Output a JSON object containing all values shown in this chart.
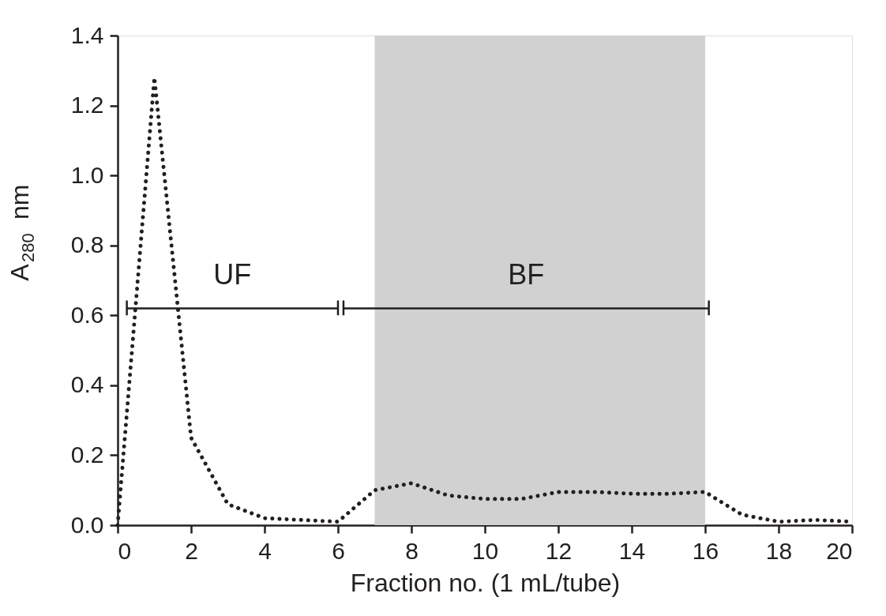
{
  "chart_data": {
    "type": "line",
    "xlabel": "Fraction no. (1 mL/tube)",
    "ylabel": "A$_{280}$ nm",
    "xlim": [
      0,
      20
    ],
    "xticks": [
      0,
      2,
      4,
      6,
      8,
      10,
      12,
      14,
      16,
      18,
      20
    ],
    "ylim": [
      0,
      1.4
    ],
    "yticks": [
      {
        "value": 0,
        "label": "0.0"
      },
      0.2,
      0.4,
      0.6,
      0.8,
      {
        "value": 1,
        "label": "1.0"
      },
      1.2,
      1.4
    ],
    "grid": false,
    "bands": [
      {
        "axis": "x",
        "from": 7,
        "to": 16,
        "color": "#d1d1d1"
      }
    ],
    "series": [
      {
        "color": "#231f20",
        "line_style": "dotted",
        "x": [
          0,
          1,
          2,
          3,
          4,
          5,
          6,
          7,
          8,
          9,
          10,
          11,
          12,
          13,
          14,
          15,
          16,
          17,
          18,
          19,
          20
        ],
        "values": [
          0.0,
          1.28,
          0.25,
          0.06,
          0.02,
          0.015,
          0.01,
          0.1,
          0.12,
          0.085,
          0.075,
          0.075,
          0.095,
          0.095,
          0.09,
          0.09,
          0.095,
          0.03,
          0.01,
          0.015,
          0.01
        ]
      },
      {
        "color": "#231f20",
        "line_style": "solid",
        "x": [
          0.25,
          0.25,
          0.25,
          6.0,
          6.0,
          6.0
        ],
        "values": [
          0.6,
          0.64,
          0.62,
          0.62,
          0.64,
          0.6
        ]
      },
      {
        "color": "#231f20",
        "line_style": "solid",
        "x": [
          6.15,
          6.15,
          6.15,
          16.1,
          16.1,
          16.1
        ],
        "values": [
          0.6,
          0.64,
          0.62,
          0.62,
          0.64,
          0.6
        ]
      }
    ],
    "annotations": [
      "UF",
      "BF"
    ]
  }
}
